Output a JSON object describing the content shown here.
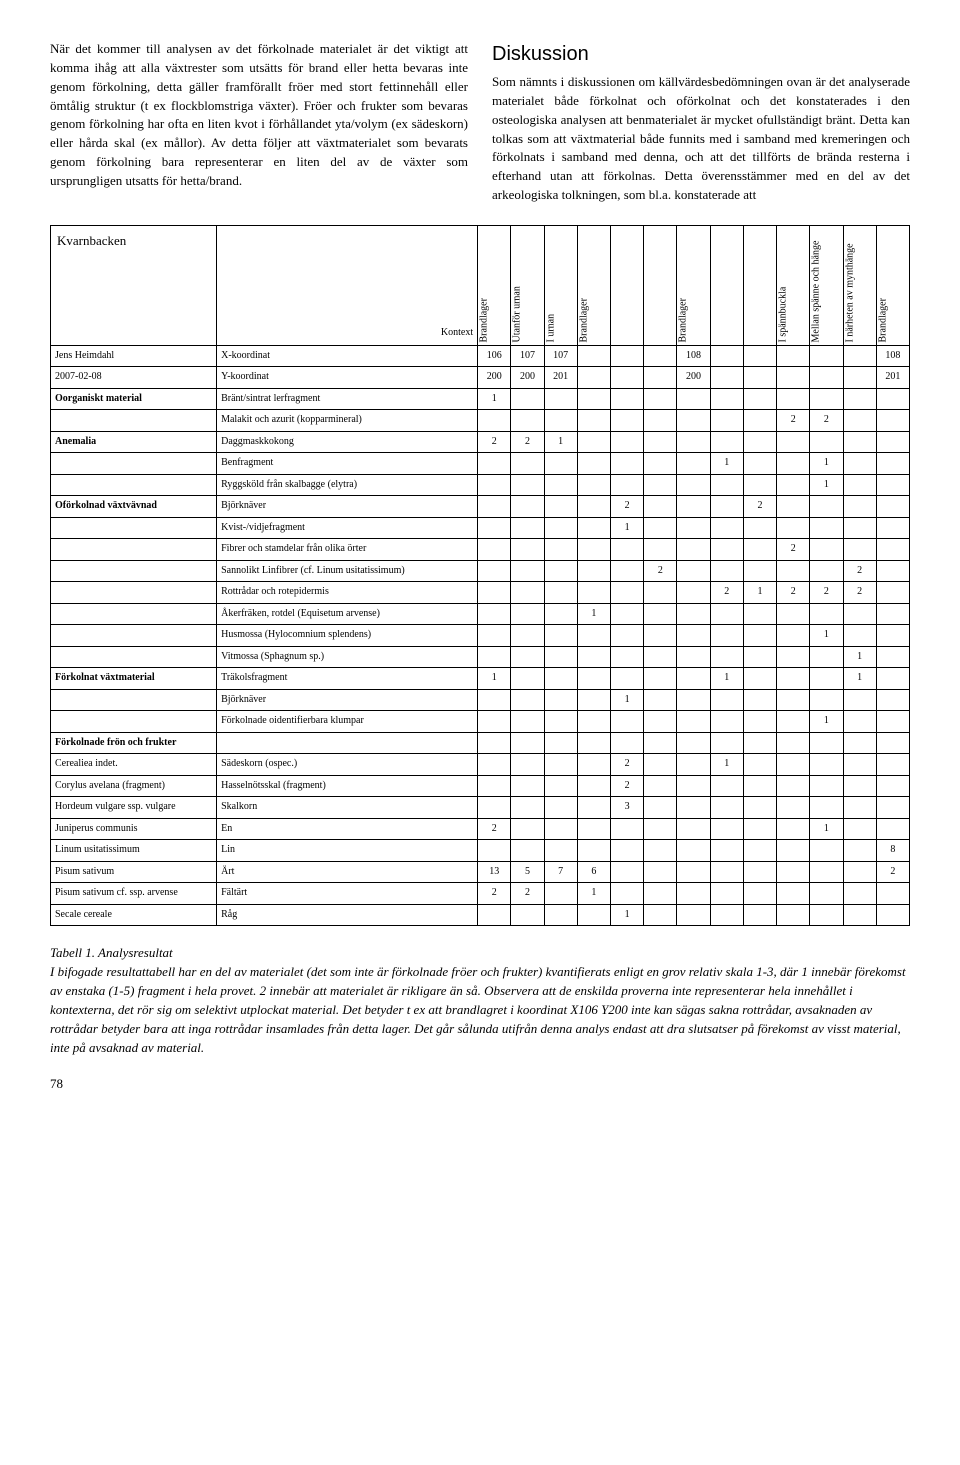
{
  "left_para": "När det kommer till analysen av det förkolnade materialet är det viktigt att komma ihåg att alla växtrester som utsätts för brand eller hetta bevaras inte genom förkolning, detta gäller framförallt fröer med stort fettinnehåll eller ömtålig struktur (t ex flockblomstriga växter). Fröer och frukter som bevaras genom förkolning har ofta en liten kvot i förhållandet yta/volym (ex sädeskorn) eller hårda skal (ex mållor). Av detta följer att växtmaterialet som bevarats genom förkolning bara representerar en liten del av de växter som ursprungligen utsatts för hetta/brand.",
  "discussion_heading": "Diskussion",
  "right_para": "Som nämnts i diskussionen om källvärdesbedömningen ovan är det analyserade materialet både förkolnat och oförkolnat och det konstaterades i den osteologiska analysen att benmaterialet är mycket ofullständigt bränt. Detta kan tolkas som att växtmaterial både funnits med i samband med kremeringen och förkolnats i samband med denna, och att det tillförts de brända resterna i efterhand utan att förkolnas. Detta överensstämmer med en del av det arkeologiska tolkningen, som bl.a. konstaterade att",
  "table": {
    "title": "Kvarnbacken",
    "kontext_label": "Kontext",
    "rotated_headers": [
      "Brandlager",
      "Utanför urnan",
      "I urnan",
      "Brandlager",
      "",
      "",
      "Brandlager",
      "",
      "",
      "I spännbuckla",
      "Mellan spänne och hänge",
      "I närheten av mynthänge",
      "Brandlager"
    ],
    "coord_rows": [
      {
        "l1": "Jens Heimdahl",
        "l2": "X-koordinat",
        "v": [
          "106",
          "107",
          "107",
          "",
          "",
          "",
          "108",
          "",
          "",
          "",
          "",
          "",
          "108"
        ]
      },
      {
        "l1": "2007-02-08",
        "l2": "Y-koordinat",
        "v": [
          "200",
          "200",
          "201",
          "",
          "",
          "",
          "200",
          "",
          "",
          "",
          "",
          "",
          "201"
        ]
      }
    ],
    "body": [
      {
        "l1": "Oorganiskt material",
        "l2": "Bränt/sintrat lerfragment",
        "v": [
          "1",
          "",
          "",
          "",
          "",
          "",
          "",
          "",
          "",
          "",
          "",
          "",
          ""
        ]
      },
      {
        "l1": "",
        "l2": "Malakit och azurit (kopparmineral)",
        "v": [
          "",
          "",
          "",
          "",
          "",
          "",
          "",
          "",
          "",
          "2",
          "2",
          "",
          ""
        ]
      },
      {
        "l1": "Anemalia",
        "l2": "Daggmaskkokong",
        "v": [
          "2",
          "2",
          "1",
          "",
          "",
          "",
          "",
          "",
          "",
          "",
          "",
          "",
          ""
        ]
      },
      {
        "l1": "",
        "l2": "Benfragment",
        "v": [
          "",
          "",
          "",
          "",
          "",
          "",
          "",
          "1",
          "",
          "",
          "1",
          "",
          ""
        ]
      },
      {
        "l1": "",
        "l2": "Ryggsköld från skalbagge (elytra)",
        "v": [
          "",
          "",
          "",
          "",
          "",
          "",
          "",
          "",
          "",
          "",
          "1",
          "",
          ""
        ]
      },
      {
        "l1": "Oförkolnad växtvävnad",
        "l2": "Björknäver",
        "v": [
          "",
          "",
          "",
          "",
          "2",
          "",
          "",
          "",
          "2",
          "",
          "",
          "",
          ""
        ]
      },
      {
        "l1": "",
        "l2": "Kvist-/vidjefragment",
        "v": [
          "",
          "",
          "",
          "",
          "1",
          "",
          "",
          "",
          "",
          "",
          "",
          "",
          ""
        ]
      },
      {
        "l1": "",
        "l2": "Fibrer och stamdelar från olika örter",
        "v": [
          "",
          "",
          "",
          "",
          "",
          "",
          "",
          "",
          "",
          "2",
          "",
          "",
          ""
        ]
      },
      {
        "l1": "",
        "l2": "Sannolikt Linfibrer (cf. Linum usitatissimum)",
        "v": [
          "",
          "",
          "",
          "",
          "",
          "2",
          "",
          "",
          "",
          "",
          "",
          "2",
          ""
        ]
      },
      {
        "l1": "",
        "l2": "Rottrådar och rotepidermis",
        "v": [
          "",
          "",
          "",
          "",
          "",
          "",
          "",
          "2",
          "1",
          "2",
          "2",
          "2",
          ""
        ]
      },
      {
        "l1": "",
        "l2": "Åkerfräken, rotdel (Equisetum arvense)",
        "v": [
          "",
          "",
          "",
          "1",
          "",
          "",
          "",
          "",
          "",
          "",
          "",
          "",
          ""
        ]
      },
      {
        "l1": "",
        "l2": "Husmossa (Hylocomnium splendens)",
        "v": [
          "",
          "",
          "",
          "",
          "",
          "",
          "",
          "",
          "",
          "",
          "1",
          "",
          ""
        ]
      },
      {
        "l1": "",
        "l2": "Vitmossa (Sphagnum sp.)",
        "v": [
          "",
          "",
          "",
          "",
          "",
          "",
          "",
          "",
          "",
          "",
          "",
          "1",
          ""
        ]
      },
      {
        "l1": "Förkolnat växtmaterial",
        "l2": "Träkolsfragment",
        "v": [
          "1",
          "",
          "",
          "",
          "",
          "",
          "",
          "1",
          "",
          "",
          "",
          "1",
          ""
        ]
      },
      {
        "l1": "",
        "l2": "Björknäver",
        "v": [
          "",
          "",
          "",
          "",
          "1",
          "",
          "",
          "",
          "",
          "",
          "",
          "",
          ""
        ]
      },
      {
        "l1": "",
        "l2": "Förkolnade oidentifierbara klumpar",
        "v": [
          "",
          "",
          "",
          "",
          "",
          "",
          "",
          "",
          "",
          "",
          "1",
          "",
          ""
        ]
      },
      {
        "l1_bold": true,
        "l1": "Förkolnade frön och frukter",
        "l2": "",
        "v": [
          "",
          "",
          "",
          "",
          "",
          "",
          "",
          "",
          "",
          "",
          "",
          "",
          ""
        ]
      },
      {
        "l1": "Cerealiea indet.",
        "l2": "Sädeskorn (ospec.)",
        "v": [
          "",
          "",
          "",
          "",
          "2",
          "",
          "",
          "1",
          "",
          "",
          "",
          "",
          ""
        ]
      },
      {
        "l1": "Corylus avelana (fragment)",
        "l2": "Hasselnötsskal (fragment)",
        "v": [
          "",
          "",
          "",
          "",
          "2",
          "",
          "",
          "",
          "",
          "",
          "",
          "",
          ""
        ]
      },
      {
        "l1": "Hordeum vulgare ssp. vulgare",
        "l2": "Skalkorn",
        "v": [
          "",
          "",
          "",
          "",
          "3",
          "",
          "",
          "",
          "",
          "",
          "",
          "",
          ""
        ]
      },
      {
        "l1": "Juniperus communis",
        "l2": "En",
        "v": [
          "2",
          "",
          "",
          "",
          "",
          "",
          "",
          "",
          "",
          "",
          "1",
          "",
          ""
        ]
      },
      {
        "l1": "Linum usitatissimum",
        "l2": "Lin",
        "v": [
          "",
          "",
          "",
          "",
          "",
          "",
          "",
          "",
          "",
          "",
          "",
          "",
          "8"
        ]
      },
      {
        "l1": "Pisum sativum",
        "l2": "Ärt",
        "v": [
          "13",
          "5",
          "7",
          "6",
          "",
          "",
          "",
          "",
          "",
          "",
          "",
          "",
          "2"
        ]
      },
      {
        "l1": "Pisum sativum cf. ssp. arvense",
        "l2": "Fältärt",
        "v": [
          "2",
          "2",
          "",
          "1",
          "",
          "",
          "",
          "",
          "",
          "",
          "",
          "",
          ""
        ]
      },
      {
        "l1": "Secale cereale",
        "l2": "Råg",
        "v": [
          "",
          "",
          "",
          "",
          "1",
          "",
          "",
          "",
          "",
          "",
          "",
          "",
          ""
        ]
      }
    ]
  },
  "caption_title": "Tabell 1. Analysresultat",
  "caption_body": "I bifogade resultattabell har en del av materialet (det som inte är förkolnade fröer och frukter) kvantifierats enligt en grov relativ skala 1-3, där 1 innebär förekomst av enstaka (1-5) fragment i hela provet. 2 innebär att materialet är rikligare än så. Observera att de enskilda proverna inte representerar hela innehållet i kontexterna, det rör sig om selektivt utplockat material. Det betyder t ex att brandlagret i koordinat X106 Y200 inte kan sägas sakna rottrådar, avsaknaden av rottrådar betyder bara att inga rottrådar insamlades från detta lager. Det går sålunda utifrån denna analys endast att dra slutsatser på förekomst av visst material, inte på avsaknad av material.",
  "page_number": "78"
}
